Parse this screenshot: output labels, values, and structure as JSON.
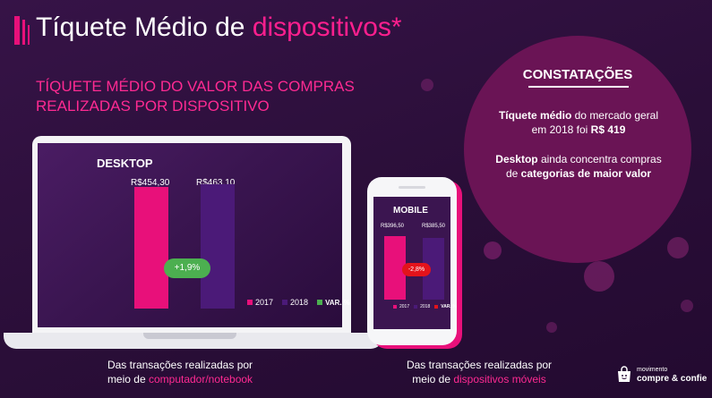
{
  "header": {
    "title_main": "Tíquete Médio de ",
    "title_accent": "dispositivos*"
  },
  "subtitle": {
    "line1": "TÍQUETE MÉDIO DO VALOR DAS COMPRAS",
    "line2": "REALIZADAS POR DISPOSITIVO"
  },
  "findings": {
    "title": "CONSTATAÇÕES",
    "p1_bold1": "Tíquete médio",
    "p1_text1": " do mercado geral em 2018 foi ",
    "p1_bold2": "R$ 419",
    "p2_bold1": "Desktop",
    "p2_text1": " ainda concentra compras de ",
    "p2_bold2": "categorias de maior valor"
  },
  "captions": {
    "desktop_line1": "Das transações realizadas por",
    "desktop_line2_prefix": "meio de ",
    "desktop_line2_accent": "computador/notebook",
    "mobile_line1": "Das transações realizadas por",
    "mobile_line2_prefix": "meio de ",
    "mobile_line2_accent": "dispositivos móveis"
  },
  "brand": {
    "small": "movimento",
    "big": "compre & confie"
  },
  "colors": {
    "bar_2017": "#e8107a",
    "bar_2018": "#4b1a78",
    "var_positive": "#4caf50",
    "var_negative": "#e3131b"
  },
  "chart_data": [
    {
      "type": "bar",
      "title": "DESKTOP",
      "categories": [
        "2017",
        "2018"
      ],
      "values": [
        454.3,
        463.1
      ],
      "value_labels": [
        "R$454,30",
        "R$463,10"
      ],
      "variation": "+1,9%",
      "legend": [
        "2017",
        "2018",
        "VAR. %"
      ],
      "ylim": [
        0,
        480
      ]
    },
    {
      "type": "bar",
      "title": "MOBILE",
      "categories": [
        "2017",
        "2018"
      ],
      "values": [
        396.5,
        385.5
      ],
      "value_labels": [
        "R$396,50",
        "R$385,50"
      ],
      "variation": "-2,8%",
      "legend": [
        "2017",
        "2018",
        "VAR. %"
      ],
      "ylim": [
        0,
        480
      ]
    }
  ]
}
